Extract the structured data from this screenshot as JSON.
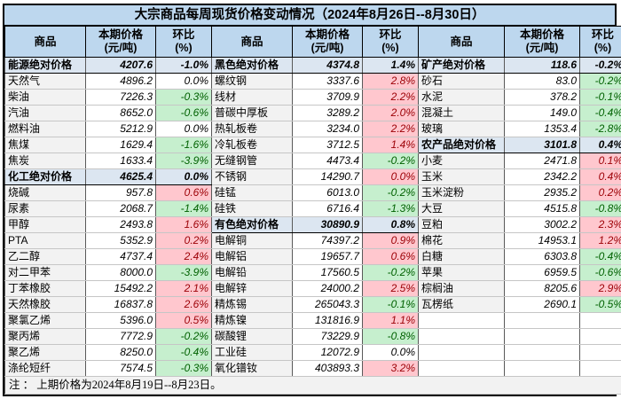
{
  "title": "大宗商品每周现货价格变动情况（2024年8月26日--8月30日）",
  "note": "注 ： 上期价格为2024年8月19日--8月23日。",
  "headers": {
    "commodity": "商品",
    "price": "本期价格",
    "price_unit": "(元/吨)",
    "pct": "环比",
    "pct_unit": "(%)"
  },
  "colors": {
    "header_bg": "#bdd7ee",
    "aggregate_row_bg": "#dce6f1",
    "name_col_bg": "#f2f2f2",
    "increase_bg": "#ffc7ce",
    "increase_text": "#9c0006",
    "decrease_bg": "#c6efce",
    "decrease_text": "#006100"
  },
  "chart_data": {
    "type": "table",
    "title": "大宗商品每周现货价格变动情况（2024年8月26日--8月30日）",
    "columns_per_group": [
      "商品",
      "本期价格(元/吨)",
      "环比(%)"
    ],
    "row_count": 20,
    "legend_note": "state: agg=分类汇总行(蓝), up=上涨(红), down=下跌(绿), flat=持平(白)",
    "groups": [
      {
        "rows": [
          {
            "name": "能源绝对价格",
            "price": "4207.6",
            "pct": "-1.0%",
            "state": "agg"
          },
          {
            "name": "天然气",
            "price": "4896.2",
            "pct": "0.0%",
            "state": "flat"
          },
          {
            "name": "柴油",
            "price": "7226.3",
            "pct": "-0.3%",
            "state": "down"
          },
          {
            "name": "汽油",
            "price": "8652.0",
            "pct": "-0.6%",
            "state": "down"
          },
          {
            "name": "燃料油",
            "price": "5212.9",
            "pct": "0.0%",
            "state": "flat"
          },
          {
            "name": "焦煤",
            "price": "1629.4",
            "pct": "-1.6%",
            "state": "down"
          },
          {
            "name": "焦炭",
            "price": "1633.4",
            "pct": "-3.9%",
            "state": "down"
          },
          {
            "name": "化工绝对价格",
            "price": "4625.4",
            "pct": "0.0%",
            "state": "agg"
          },
          {
            "name": "烧碱",
            "price": "957.8",
            "pct": "0.6%",
            "state": "up"
          },
          {
            "name": "尿素",
            "price": "2068.7",
            "pct": "-1.4%",
            "state": "down"
          },
          {
            "name": "甲醇",
            "price": "2493.8",
            "pct": "1.6%",
            "state": "up"
          },
          {
            "name": "PTA",
            "price": "5352.9",
            "pct": "0.2%",
            "state": "up"
          },
          {
            "name": "乙二醇",
            "price": "4737.4",
            "pct": "2.4%",
            "state": "up"
          },
          {
            "name": "对二甲苯",
            "price": "8000.0",
            "pct": "-3.9%",
            "state": "down"
          },
          {
            "name": "丁苯橡胶",
            "price": "15492.2",
            "pct": "2.1%",
            "state": "up"
          },
          {
            "name": "天然橡胶",
            "price": "16837.8",
            "pct": "2.6%",
            "state": "up"
          },
          {
            "name": "聚氯乙烯",
            "price": "5396.0",
            "pct": "0.5%",
            "state": "up"
          },
          {
            "name": "聚丙烯",
            "price": "7772.9",
            "pct": "-0.2%",
            "state": "down"
          },
          {
            "name": "聚乙烯",
            "price": "8250.0",
            "pct": "-0.4%",
            "state": "down"
          },
          {
            "name": "涤纶短纤",
            "price": "7574.5",
            "pct": "-0.3%",
            "state": "down"
          }
        ]
      },
      {
        "rows": [
          {
            "name": "黑色绝对价格",
            "price": "4374.8",
            "pct": "1.4%",
            "state": "agg"
          },
          {
            "name": "螺纹钢",
            "price": "3337.6",
            "pct": "2.8%",
            "state": "up"
          },
          {
            "name": "线材",
            "price": "3709.9",
            "pct": "2.2%",
            "state": "up"
          },
          {
            "name": "普碳中厚板",
            "price": "3289.2",
            "pct": "2.0%",
            "state": "up"
          },
          {
            "name": "热轧板卷",
            "price": "3234.0",
            "pct": "2.2%",
            "state": "up"
          },
          {
            "name": "冷轧板卷",
            "price": "3712.5",
            "pct": "1.4%",
            "state": "up"
          },
          {
            "name": "无缝钢管",
            "price": "4473.4",
            "pct": "-0.2%",
            "state": "down"
          },
          {
            "name": "不锈钢",
            "price": "14290.7",
            "pct": "0.0%",
            "state": "up"
          },
          {
            "name": "硅锰",
            "price": "6013.0",
            "pct": "-0.2%",
            "state": "down"
          },
          {
            "name": "硅铁",
            "price": "6716.4",
            "pct": "-1.3%",
            "state": "down"
          },
          {
            "name": "有色绝对价格",
            "price": "30890.9",
            "pct": "0.8%",
            "state": "agg"
          },
          {
            "name": "电解铜",
            "price": "74397.2",
            "pct": "0.9%",
            "state": "up"
          },
          {
            "name": "电解铝",
            "price": "19657.7",
            "pct": "0.6%",
            "state": "up"
          },
          {
            "name": "电解铅",
            "price": "17560.5",
            "pct": "-0.2%",
            "state": "down"
          },
          {
            "name": "电解锌",
            "price": "24000.2",
            "pct": "2.5%",
            "state": "up"
          },
          {
            "name": "精炼锡",
            "price": "265043.3",
            "pct": "-0.1%",
            "state": "down"
          },
          {
            "name": "精炼镍",
            "price": "131816.9",
            "pct": "1.1%",
            "state": "up"
          },
          {
            "name": "碳酸锂",
            "price": "73229.9",
            "pct": "-0.8%",
            "state": "down"
          },
          {
            "name": "工业硅",
            "price": "12072.9",
            "pct": "0.0%",
            "state": "flat"
          },
          {
            "name": "氧化镨钕",
            "price": "403893.3",
            "pct": "3.2%",
            "state": "up"
          }
        ]
      },
      {
        "rows": [
          {
            "name": "矿产绝对价格",
            "price": "118.6",
            "pct": "-0.2%",
            "state": "agg"
          },
          {
            "name": "砂石",
            "price": "83.0",
            "pct": "-0.2%",
            "state": "down"
          },
          {
            "name": "水泥",
            "price": "378.2",
            "pct": "-0.1%",
            "state": "down"
          },
          {
            "name": "混凝土",
            "price": "149.0",
            "pct": "-0.4%",
            "state": "down"
          },
          {
            "name": "玻璃",
            "price": "1353.4",
            "pct": "-2.8%",
            "state": "down"
          },
          {
            "name": "农产品绝对价格",
            "price": "3101.8",
            "pct": "0.4%",
            "state": "agg"
          },
          {
            "name": "小麦",
            "price": "2471.8",
            "pct": "0.1%",
            "state": "up"
          },
          {
            "name": "玉米",
            "price": "2342.2",
            "pct": "0.4%",
            "state": "up"
          },
          {
            "name": "玉米淀粉",
            "price": "2935.2",
            "pct": "0.2%",
            "state": "up"
          },
          {
            "name": "大豆",
            "price": "4515.8",
            "pct": "-0.8%",
            "state": "down"
          },
          {
            "name": "豆粕",
            "price": "3002.2",
            "pct": "2.3%",
            "state": "up"
          },
          {
            "name": "棉花",
            "price": "14953.1",
            "pct": "1.2%",
            "state": "up"
          },
          {
            "name": "白糖",
            "price": "6303.8",
            "pct": "-0.4%",
            "state": "down"
          },
          {
            "name": "苹果",
            "price": "6959.5",
            "pct": "-0.6%",
            "state": "down"
          },
          {
            "name": "棕榈油",
            "price": "8205.6",
            "pct": "2.9%",
            "state": "up"
          },
          {
            "name": "瓦楞纸",
            "price": "2690.1",
            "pct": "-0.5%",
            "state": "down"
          },
          {
            "name": "",
            "price": "",
            "pct": "",
            "state": "empty"
          },
          {
            "name": "",
            "price": "",
            "pct": "",
            "state": "empty"
          },
          {
            "name": "",
            "price": "",
            "pct": "",
            "state": "empty"
          },
          {
            "name": "",
            "price": "",
            "pct": "",
            "state": "empty"
          }
        ]
      }
    ]
  }
}
